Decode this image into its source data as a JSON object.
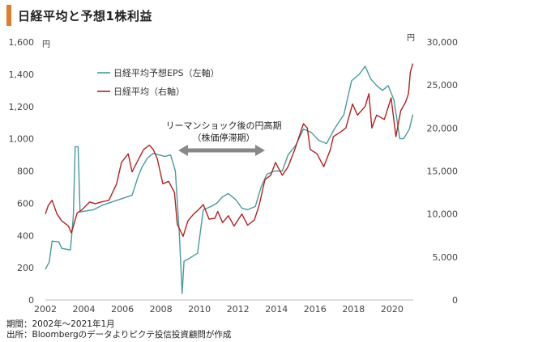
{
  "title": "日経平均と予想1株利益",
  "footnote": {
    "period": "期間：2002年～2021年1月",
    "source": "出所：Bloombergのデータよりピクテ投信投資顧問が作成"
  },
  "chart_data": {
    "type": "line",
    "y_left": {
      "unit": "円",
      "ylim": [
        0,
        1600
      ],
      "ticks": [
        "0",
        "200",
        "400",
        "600",
        "800",
        "1,000",
        "1,200",
        "1,400",
        "1,600"
      ]
    },
    "y_right": {
      "unit": "円",
      "ylim": [
        0,
        30000
      ],
      "ticks": [
        "0",
        "5,000",
        "10,000",
        "15,000",
        "20,000",
        "25,000",
        "30,000"
      ]
    },
    "x": {
      "xlim": [
        2002,
        2021.1
      ],
      "ticks": [
        "2002",
        "2004",
        "2006",
        "2008",
        "2010",
        "2012",
        "2014",
        "2016",
        "2018",
        "2020"
      ]
    },
    "grid": false,
    "legend_position": "top-left",
    "annotation": {
      "line1": "リーマンショック後の円高期",
      "line2": "（株価停滞期）",
      "x_range": [
        2008.9,
        2013.4
      ]
    },
    "series": [
      {
        "name": "日経平均予想EPS（左軸）",
        "axis": "left",
        "color": "#4a9a9c",
        "points": [
          [
            2002.0,
            190
          ],
          [
            2002.2,
            235
          ],
          [
            2002.35,
            365
          ],
          [
            2002.7,
            360
          ],
          [
            2002.85,
            320
          ],
          [
            2003.3,
            310
          ],
          [
            2003.45,
            520
          ],
          [
            2003.55,
            950
          ],
          [
            2003.7,
            950
          ],
          [
            2003.8,
            545
          ],
          [
            2004.0,
            550
          ],
          [
            2004.5,
            560
          ],
          [
            2005.0,
            590
          ],
          [
            2005.5,
            610
          ],
          [
            2006.0,
            630
          ],
          [
            2006.5,
            650
          ],
          [
            2006.8,
            760
          ],
          [
            2007.0,
            820
          ],
          [
            2007.3,
            880
          ],
          [
            2007.6,
            910
          ],
          [
            2007.9,
            900
          ],
          [
            2008.2,
            890
          ],
          [
            2008.5,
            900
          ],
          [
            2008.75,
            800
          ],
          [
            2008.95,
            420
          ],
          [
            2009.1,
            40
          ],
          [
            2009.2,
            240
          ],
          [
            2009.5,
            260
          ],
          [
            2009.9,
            290
          ],
          [
            2010.2,
            560
          ],
          [
            2010.6,
            580
          ],
          [
            2010.9,
            600
          ],
          [
            2011.2,
            640
          ],
          [
            2011.5,
            660
          ],
          [
            2011.9,
            620
          ],
          [
            2012.2,
            570
          ],
          [
            2012.5,
            560
          ],
          [
            2012.9,
            580
          ],
          [
            2013.2,
            700
          ],
          [
            2013.5,
            780
          ],
          [
            2013.9,
            800
          ],
          [
            2014.3,
            800
          ],
          [
            2014.6,
            900
          ],
          [
            2015.0,
            960
          ],
          [
            2015.4,
            1060
          ],
          [
            2015.8,
            1040
          ],
          [
            2016.2,
            990
          ],
          [
            2016.6,
            970
          ],
          [
            2017.0,
            1060
          ],
          [
            2017.5,
            1150
          ],
          [
            2017.9,
            1360
          ],
          [
            2018.3,
            1400
          ],
          [
            2018.6,
            1450
          ],
          [
            2018.9,
            1370
          ],
          [
            2019.2,
            1330
          ],
          [
            2019.5,
            1300
          ],
          [
            2019.8,
            1330
          ],
          [
            2020.1,
            1240
          ],
          [
            2020.4,
            1000
          ],
          [
            2020.6,
            1000
          ],
          [
            2020.9,
            1060
          ],
          [
            2021.08,
            1150
          ]
        ]
      },
      {
        "name": "日経平均（右軸）",
        "axis": "right",
        "color": "#b22222",
        "points": [
          [
            2002.0,
            10000
          ],
          [
            2002.15,
            11000
          ],
          [
            2002.35,
            11600
          ],
          [
            2002.6,
            10000
          ],
          [
            2002.85,
            9200
          ],
          [
            2003.2,
            8600
          ],
          [
            2003.35,
            7800
          ],
          [
            2003.65,
            10100
          ],
          [
            2003.9,
            10500
          ],
          [
            2004.3,
            11400
          ],
          [
            2004.6,
            11200
          ],
          [
            2004.9,
            11400
          ],
          [
            2005.3,
            11600
          ],
          [
            2005.7,
            13500
          ],
          [
            2005.95,
            16000
          ],
          [
            2006.3,
            17000
          ],
          [
            2006.5,
            14900
          ],
          [
            2006.8,
            16200
          ],
          [
            2007.1,
            17500
          ],
          [
            2007.4,
            18000
          ],
          [
            2007.6,
            17500
          ],
          [
            2007.8,
            16500
          ],
          [
            2008.1,
            13500
          ],
          [
            2008.4,
            13800
          ],
          [
            2008.7,
            12500
          ],
          [
            2008.85,
            8800
          ],
          [
            2009.15,
            7400
          ],
          [
            2009.4,
            9200
          ],
          [
            2009.7,
            10000
          ],
          [
            2009.95,
            10500
          ],
          [
            2010.2,
            11100
          ],
          [
            2010.5,
            9400
          ],
          [
            2010.8,
            9500
          ],
          [
            2010.95,
            10300
          ],
          [
            2011.2,
            9000
          ],
          [
            2011.5,
            9800
          ],
          [
            2011.8,
            8600
          ],
          [
            2012.2,
            10000
          ],
          [
            2012.5,
            8700
          ],
          [
            2012.85,
            9300
          ],
          [
            2013.1,
            11000
          ],
          [
            2013.4,
            14000
          ],
          [
            2013.7,
            14500
          ],
          [
            2013.95,
            16000
          ],
          [
            2014.3,
            14500
          ],
          [
            2014.6,
            15500
          ],
          [
            2014.95,
            17500
          ],
          [
            2015.4,
            20500
          ],
          [
            2015.6,
            20000
          ],
          [
            2015.75,
            17500
          ],
          [
            2016.1,
            17000
          ],
          [
            2016.45,
            15500
          ],
          [
            2016.8,
            17500
          ],
          [
            2016.95,
            19000
          ],
          [
            2017.3,
            19500
          ],
          [
            2017.6,
            20000
          ],
          [
            2017.95,
            22800
          ],
          [
            2018.2,
            21500
          ],
          [
            2018.6,
            22500
          ],
          [
            2018.8,
            24000
          ],
          [
            2018.95,
            20000
          ],
          [
            2019.2,
            21500
          ],
          [
            2019.6,
            21000
          ],
          [
            2019.95,
            23500
          ],
          [
            2020.2,
            19000
          ],
          [
            2020.45,
            22000
          ],
          [
            2020.7,
            23000
          ],
          [
            2020.85,
            24000
          ],
          [
            2020.95,
            26500
          ],
          [
            2021.08,
            27500
          ]
        ]
      }
    ]
  }
}
